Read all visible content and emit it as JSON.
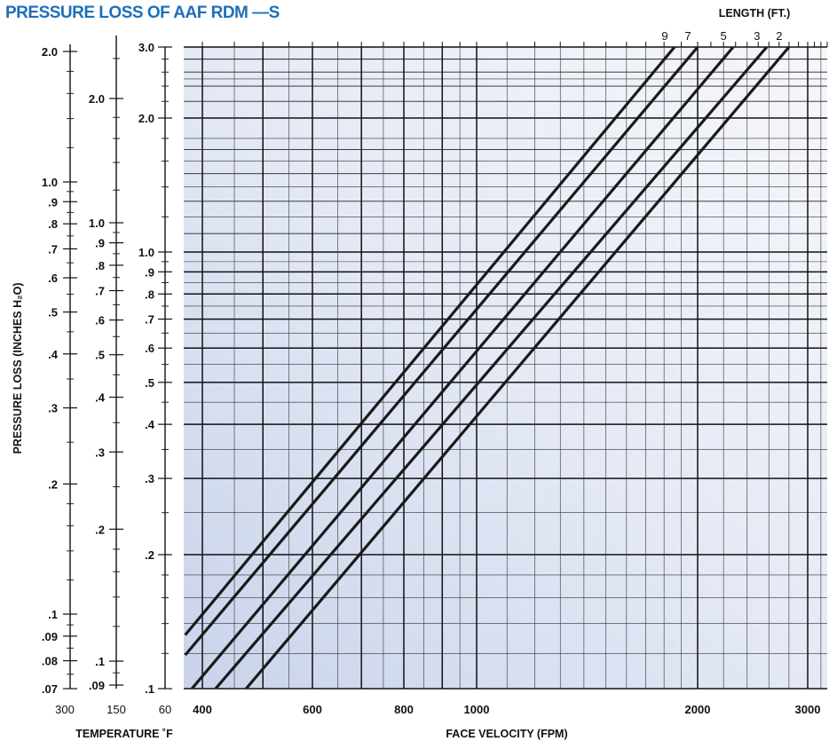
{
  "title": "PRESSURE LOSS OF AAF RDM —S",
  "chart_data": {
    "type": "line",
    "log_x": true,
    "log_y": true,
    "xlabel": "FACE VELOCITY (FPM)",
    "ylabel": "PRESSURE LOSS (INCHES H₂O)",
    "xlim": [
      360,
      3300
    ],
    "ylim": [
      0.1,
      3.0
    ],
    "grid": true,
    "legend_title": "LENGTH (FT.)",
    "legend_position": "top-right",
    "x_ticks": [
      {
        "value": 400,
        "label": "400"
      },
      {
        "value": 600,
        "label": "600"
      },
      {
        "value": 800,
        "label": "800"
      },
      {
        "value": 1000,
        "label": "1000"
      },
      {
        "value": 2000,
        "label": "2000"
      },
      {
        "value": 3000,
        "label": "3000"
      }
    ],
    "y_ticks": [
      {
        "value": 3.0,
        "label": "3.0"
      },
      {
        "value": 2.0,
        "label": "2.0"
      },
      {
        "value": 1.0,
        "label": "1.0"
      },
      {
        "value": 0.9,
        "label": ".9"
      },
      {
        "value": 0.8,
        "label": ".8"
      },
      {
        "value": 0.7,
        "label": ".7"
      },
      {
        "value": 0.6,
        "label": ".6"
      },
      {
        "value": 0.5,
        "label": ".5"
      },
      {
        "value": 0.4,
        "label": ".4"
      },
      {
        "value": 0.3,
        "label": ".3"
      },
      {
        "value": 0.2,
        "label": ".2"
      },
      {
        "value": 0.1,
        "label": ".1"
      }
    ],
    "series": [
      {
        "name": "9",
        "x": [
          363,
          1860
        ],
        "y": [
          0.132,
          3.0
        ]
      },
      {
        "name": "7",
        "x": [
          363,
          2000
        ],
        "y": [
          0.119,
          3.0
        ]
      },
      {
        "name": "5",
        "x": [
          377,
          2280
        ],
        "y": [
          0.1,
          3.0
        ]
      },
      {
        "name": "3",
        "x": [
          420,
          2580
        ],
        "y": [
          0.1,
          3.0
        ]
      },
      {
        "name": "2",
        "x": [
          470,
          2800
        ],
        "y": [
          0.1,
          3.0
        ]
      }
    ],
    "temperature_scales": {
      "title": "TEMPERATURE ˚F",
      "scales": [
        {
          "name": "300",
          "ticks": [
            {
              "value": 2.0,
              "label": "2.0"
            },
            {
              "value": 1.0,
              "label": "1.0"
            },
            {
              "value": 0.9,
              "label": ".9"
            },
            {
              "value": 0.8,
              "label": ".8"
            },
            {
              "value": 0.7,
              "label": ".7"
            },
            {
              "value": 0.6,
              "label": ".6"
            },
            {
              "value": 0.5,
              "label": ".5"
            },
            {
              "value": 0.4,
              "label": ".4"
            },
            {
              "value": 0.3,
              "label": ".3"
            },
            {
              "value": 0.2,
              "label": ".2"
            },
            {
              "value": 0.1,
              "label": ".1"
            },
            {
              "value": 0.09,
              "label": ".09"
            },
            {
              "value": 0.08,
              "label": ".08"
            },
            {
              "value": 0.07,
              "label": ".07"
            }
          ]
        },
        {
          "name": "150",
          "ticks": [
            {
              "value": 2.0,
              "label": "2.0"
            },
            {
              "value": 1.0,
              "label": "1.0"
            },
            {
              "value": 0.9,
              "label": ".9"
            },
            {
              "value": 0.8,
              "label": ".8"
            },
            {
              "value": 0.7,
              "label": ".7"
            },
            {
              "value": 0.6,
              "label": ".6"
            },
            {
              "value": 0.5,
              "label": ".5"
            },
            {
              "value": 0.4,
              "label": ".4"
            },
            {
              "value": 0.3,
              "label": ".3"
            },
            {
              "value": 0.2,
              "label": ".2"
            },
            {
              "value": 0.1,
              "label": ".1"
            },
            {
              "value": 0.09,
              "label": ".09"
            }
          ]
        },
        {
          "name": "60",
          "ticks": [
            {
              "value": 3.0,
              "label": "3.0"
            },
            {
              "value": 2.0,
              "label": "2.0"
            },
            {
              "value": 1.0,
              "label": "1.0"
            },
            {
              "value": 0.9,
              "label": ".9"
            },
            {
              "value": 0.8,
              "label": ".8"
            },
            {
              "value": 0.7,
              "label": ".7"
            },
            {
              "value": 0.6,
              "label": ".6"
            },
            {
              "value": 0.5,
              "label": ".5"
            },
            {
              "value": 0.4,
              "label": ".4"
            },
            {
              "value": 0.3,
              "label": ".3"
            },
            {
              "value": 0.2,
              "label": ".2"
            },
            {
              "value": 0.1,
              "label": ".1"
            }
          ]
        }
      ]
    },
    "colors": {
      "grid_major": "#111111",
      "grid_minor": "#222222",
      "lines": "#1a1a1a",
      "background_light": "#f4f6fb",
      "background_dark": "#c9d3ea",
      "title": "#1e6fb8"
    }
  }
}
